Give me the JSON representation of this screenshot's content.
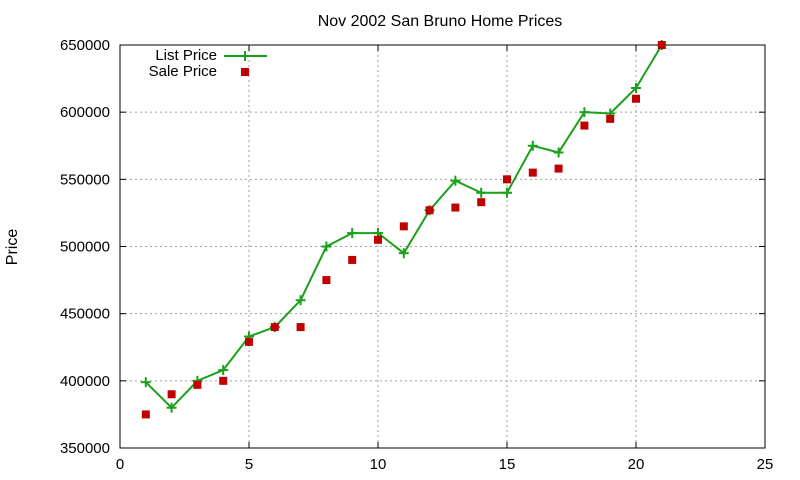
{
  "chart_data": {
    "type": "line",
    "title": "Nov 2002 San Bruno Home Prices",
    "xlabel": "",
    "ylabel": "Price",
    "xlim": [
      0,
      25
    ],
    "ylim": [
      350000,
      650000
    ],
    "x_ticks": [
      0,
      5,
      10,
      15,
      20,
      25
    ],
    "y_ticks": [
      350000,
      400000,
      450000,
      500000,
      550000,
      600000,
      650000
    ],
    "grid": true,
    "legend_position": "top-left",
    "series": [
      {
        "name": "List Price",
        "style": "line-points",
        "color": "#1aa01a",
        "x": [
          1,
          2,
          3,
          4,
          5,
          6,
          7,
          8,
          9,
          10,
          11,
          12,
          13,
          14,
          15,
          16,
          17,
          18,
          19,
          20,
          21
        ],
        "values": [
          399000,
          380000,
          400000,
          408000,
          433000,
          440000,
          460000,
          500000,
          510000,
          510000,
          495000,
          527000,
          549000,
          540000,
          540000,
          575000,
          570000,
          600000,
          599000,
          618000,
          650000
        ]
      },
      {
        "name": "Sale Price",
        "style": "points",
        "color": "#c00000",
        "x": [
          1,
          2,
          3,
          4,
          5,
          6,
          7,
          8,
          9,
          10,
          11,
          12,
          13,
          14,
          15,
          16,
          17,
          18,
          19,
          20,
          21
        ],
        "values": [
          375000,
          390000,
          397000,
          400000,
          429000,
          440000,
          440000,
          475000,
          490000,
          505000,
          515000,
          527000,
          529000,
          533000,
          550000,
          555000,
          558000,
          590000,
          595000,
          610000,
          650000
        ]
      }
    ]
  }
}
